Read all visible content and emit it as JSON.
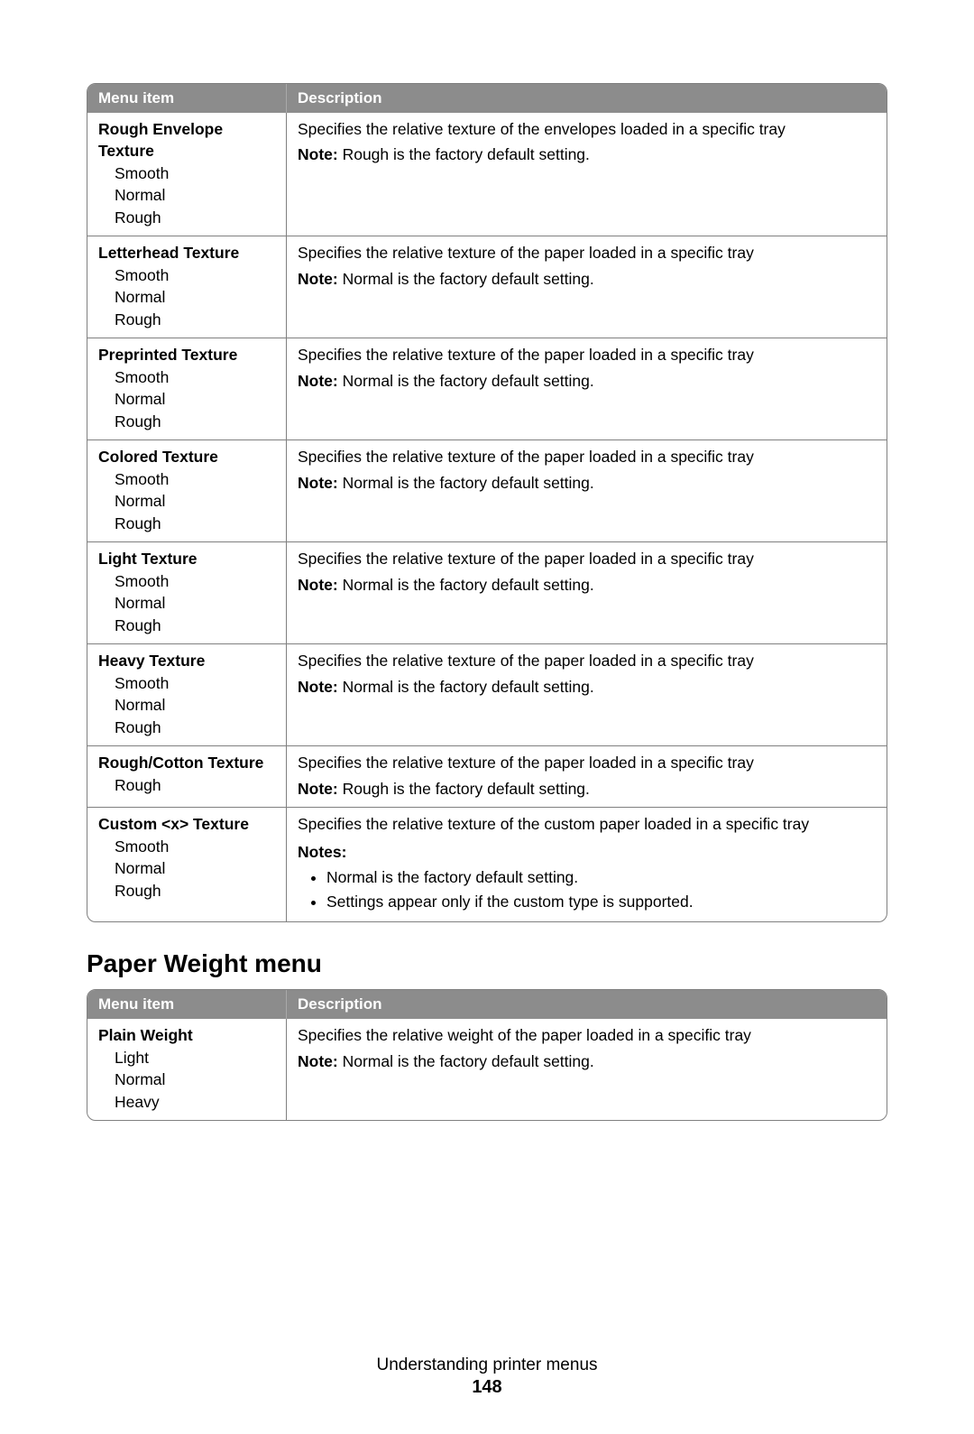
{
  "table1": {
    "headers": {
      "menu": "Menu item",
      "desc": "Description"
    },
    "rows": [
      {
        "title": "Rough Envelope Texture",
        "options": [
          "Smooth",
          "Normal",
          "Rough"
        ],
        "desc": "Specifies the relative texture of the envelopes loaded in a specific tray",
        "note_label": "Note:",
        "note": " Rough is the factory default setting."
      },
      {
        "title": "Letterhead Texture",
        "options": [
          "Smooth",
          "Normal",
          "Rough"
        ],
        "desc": "Specifies the relative texture of the paper loaded in a specific tray",
        "note_label": "Note:",
        "note": " Normal is the factory default setting."
      },
      {
        "title": "Preprinted Texture",
        "options": [
          "Smooth",
          "Normal",
          "Rough"
        ],
        "desc": "Specifies the relative texture of the paper loaded in a specific tray",
        "note_label": "Note:",
        "note": " Normal is the factory default setting."
      },
      {
        "title": "Colored Texture",
        "options": [
          "Smooth",
          "Normal",
          "Rough"
        ],
        "desc": "Specifies the relative texture of the paper loaded in a specific tray",
        "note_label": "Note:",
        "note": " Normal is the factory default setting."
      },
      {
        "title": "Light Texture",
        "options": [
          "Smooth",
          "Normal",
          "Rough"
        ],
        "desc": "Specifies the relative texture of the paper loaded in a specific tray",
        "note_label": "Note:",
        "note": " Normal is the factory default setting."
      },
      {
        "title": "Heavy Texture",
        "options": [
          "Smooth",
          "Normal",
          "Rough"
        ],
        "desc": "Specifies the relative texture of the paper loaded in a specific tray",
        "note_label": "Note:",
        "note": " Normal is the factory default setting."
      },
      {
        "title": "Rough/Cotton Texture",
        "options": [
          "Rough"
        ],
        "desc": "Specifies the relative texture of the paper loaded in a specific tray",
        "note_label": "Note:",
        "note": " Rough is the factory default setting."
      },
      {
        "title": "Custom <x> Texture",
        "options": [
          "Smooth",
          "Normal",
          "Rough"
        ],
        "desc": "Specifies the relative texture of the custom paper loaded in a specific tray",
        "notes_label": "Notes:",
        "notes": [
          "Normal is the factory default setting.",
          "Settings appear only if the custom type is supported."
        ]
      }
    ]
  },
  "section_heading": "Paper Weight menu",
  "table2": {
    "headers": {
      "menu": "Menu item",
      "desc": "Description"
    },
    "rows": [
      {
        "title": "Plain Weight",
        "options": [
          "Light",
          "Normal",
          "Heavy"
        ],
        "desc": "Specifies the relative weight of the paper loaded in a specific tray",
        "note_label": "Note:",
        "note": " Normal is the factory default setting."
      }
    ]
  },
  "footer": {
    "text": "Understanding printer menus",
    "page": "148"
  }
}
